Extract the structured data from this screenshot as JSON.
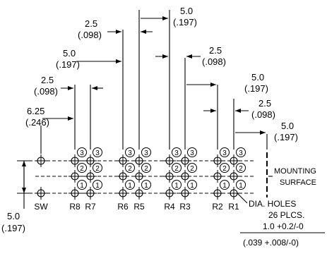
{
  "dimensions": [
    {
      "id": "d625",
      "primary": "6.25",
      "secondary": "(.246)"
    },
    {
      "id": "d25a",
      "primary": "2.5",
      "secondary": "(.098)"
    },
    {
      "id": "d50a",
      "primary": "5.0",
      "secondary": "(.197)"
    },
    {
      "id": "d25b",
      "primary": "2.5",
      "secondary": "(.098)"
    },
    {
      "id": "d50b",
      "primary": "5.0",
      "secondary": "(.197)"
    },
    {
      "id": "d25c",
      "primary": "2.5",
      "secondary": "(.098)"
    },
    {
      "id": "d50c",
      "primary": "5.0",
      "secondary": "(.197)"
    },
    {
      "id": "d25d",
      "primary": "2.5",
      "secondary": "(.098)"
    },
    {
      "id": "d50d",
      "primary": "5.0",
      "secondary": "(.197)"
    },
    {
      "id": "d50row",
      "primary": "5.0",
      "secondary": "(.197)"
    }
  ],
  "column_labels": [
    "SW",
    "R8",
    "R7",
    "R6",
    "R5",
    "R4",
    "R3",
    "R2",
    "R1"
  ],
  "row_numbers": [
    "3",
    "2",
    "1"
  ],
  "mounting_surface": {
    "line1": "MOUNTING",
    "line2": "SURFACE"
  },
  "holes_note": {
    "line1": "DIA. HOLES",
    "line2": "26 PLCS.",
    "line3": "1.0 +0.2/-0",
    "line4": "(.039 +.008/-0)"
  }
}
